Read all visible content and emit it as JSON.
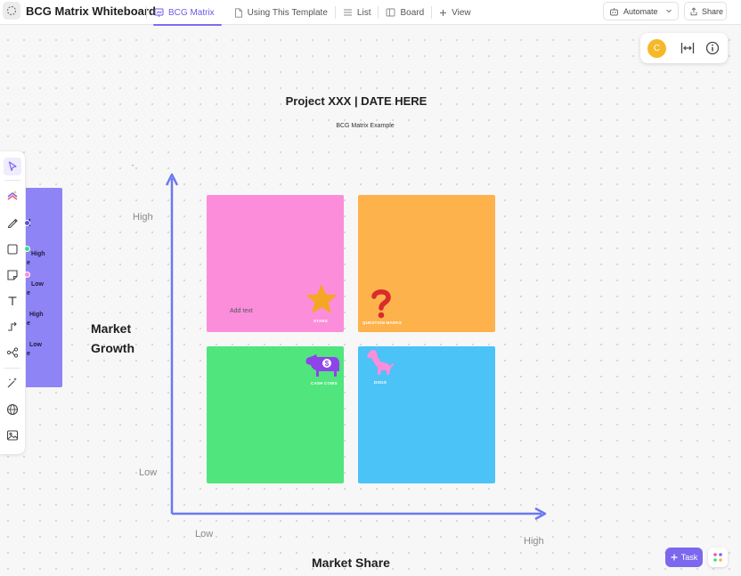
{
  "header": {
    "title": "BCG Matrix Whiteboard",
    "tabs": [
      {
        "label": "BCG Matrix",
        "icon": "whiteboard-icon",
        "active": true
      },
      {
        "label": "Using This Template",
        "icon": "doc-icon",
        "active": false
      },
      {
        "label": "List",
        "icon": "list-icon",
        "active": false
      },
      {
        "label": "Board",
        "icon": "board-icon",
        "active": false
      },
      {
        "label": "View",
        "icon": "plus-icon",
        "active": false
      }
    ],
    "automate_label": "Automate",
    "share_label": "Share"
  },
  "presence": {
    "avatar_initial": "C",
    "avatar_color": "#f5b829"
  },
  "legend_card": {
    "lines": [
      "d",
      "High",
      "e",
      "Low",
      "e",
      "High",
      "e",
      "Low",
      "e"
    ]
  },
  "canvas": {
    "title": "Project XXX | DATE HERE",
    "subtitle": "BCG Matrix Example",
    "dash": "-",
    "y_axis": {
      "title_line1": "Market",
      "title_line2": "Growth",
      "high": "High",
      "low": "Low"
    },
    "x_axis": {
      "title": "Market Share",
      "low": "Low",
      "high": "High"
    },
    "axis_color": "#6b78f0",
    "quadrants": {
      "stars": {
        "label": "STARS",
        "color": "#fc8ddb",
        "add_text": "Add text"
      },
      "question_marks": {
        "label": "QUESTION MARKS",
        "color": "#feb24c"
      },
      "cash_cows": {
        "label": "CASH COWS",
        "color": "#51e57e"
      },
      "dogs": {
        "label": "DOGS",
        "color": "#4bc3f7"
      }
    }
  },
  "footer": {
    "task_label": "Task"
  }
}
